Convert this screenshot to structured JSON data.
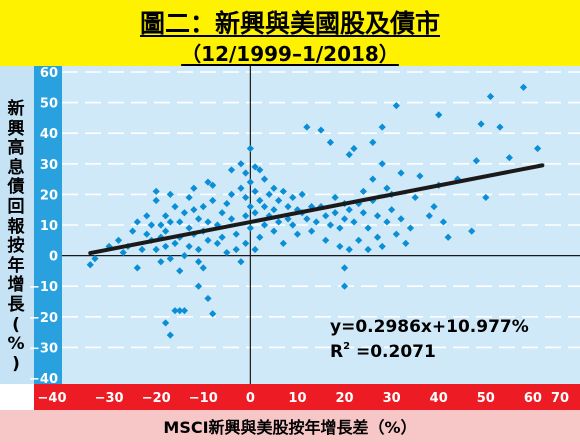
{
  "chart_data": {
    "type": "scatter",
    "title": "圖二：新興與美國股及債市",
    "subtitle": "（12/1999–1/2018）",
    "xlabel": "MSCI新興與美股按年增長差（%）",
    "ylabel": "新興高息債回報按年增長(%)",
    "xlim": [
      -40,
      70
    ],
    "ylim": [
      -40,
      60
    ],
    "x_ticks": [
      "−40",
      "−30",
      "−20",
      "−10",
      "0",
      "10",
      "20",
      "30",
      "40",
      "50",
      "60",
      "70"
    ],
    "y_ticks": [
      "60",
      "50",
      "40",
      "30",
      "20",
      "10",
      "0",
      "−10",
      "−20",
      "−30",
      "−40"
    ],
    "grid": "horizontal-dashed",
    "marker_color": "#0a8fd6",
    "trendline": {
      "slope": 0.2986,
      "intercept": 10.977,
      "x_range": [
        -34,
        62
      ],
      "color": "#1a1a1a"
    },
    "annotations": {
      "equation": "y=0.2986x+10.977%",
      "r_squared_prefix": "R",
      "r_squared_sup": "2",
      "r_squared_value": " =0.2071"
    },
    "points": [
      [
        -34,
        -3
      ],
      [
        -33,
        -1
      ],
      [
        -30,
        3
      ],
      [
        -28,
        5
      ],
      [
        -27,
        1
      ],
      [
        -26,
        3
      ],
      [
        -25,
        8
      ],
      [
        -24,
        11
      ],
      [
        -24,
        -4
      ],
      [
        -23,
        2
      ],
      [
        -22,
        7
      ],
      [
        -22,
        13
      ],
      [
        -21,
        5
      ],
      [
        -21,
        10
      ],
      [
        -20,
        18
      ],
      [
        -20,
        21
      ],
      [
        -20,
        2
      ],
      [
        -19,
        10
      ],
      [
        -19,
        6
      ],
      [
        -19,
        -2
      ],
      [
        -18,
        13
      ],
      [
        -18,
        8
      ],
      [
        -18,
        3
      ],
      [
        -18,
        -22
      ],
      [
        -17,
        20
      ],
      [
        -17,
        11
      ],
      [
        -17,
        -1
      ],
      [
        -17,
        -26
      ],
      [
        -16,
        16
      ],
      [
        -16,
        4
      ],
      [
        -16,
        -18
      ],
      [
        -15,
        11
      ],
      [
        -15,
        6
      ],
      [
        -15,
        -5
      ],
      [
        -15,
        -18
      ],
      [
        -14,
        14
      ],
      [
        -14,
        0
      ],
      [
        -14,
        -18
      ],
      [
        -13,
        19
      ],
      [
        -13,
        9
      ],
      [
        -13,
        3
      ],
      [
        -12,
        22
      ],
      [
        -12,
        15
      ],
      [
        -12,
        7
      ],
      [
        -11,
        12
      ],
      [
        -11,
        2
      ],
      [
        -11,
        -2
      ],
      [
        -11,
        -10
      ],
      [
        -10,
        16
      ],
      [
        -10,
        8
      ],
      [
        -10,
        -4
      ],
      [
        -9,
        24
      ],
      [
        -9,
        11
      ],
      [
        -9,
        5
      ],
      [
        -9,
        -14
      ],
      [
        -8,
        23
      ],
      [
        -8,
        18
      ],
      [
        -8,
        -19
      ],
      [
        -7,
        10
      ],
      [
        -7,
        4
      ],
      [
        -6,
        14
      ],
      [
        -6,
        6
      ],
      [
        -5,
        17
      ],
      [
        -5,
        1
      ],
      [
        -4,
        28
      ],
      [
        -4,
        20
      ],
      [
        -4,
        12
      ],
      [
        -3,
        7
      ],
      [
        -3,
        2
      ],
      [
        -2,
        30
      ],
      [
        -2,
        22
      ],
      [
        -2,
        -2
      ],
      [
        -1,
        27
      ],
      [
        -1,
        19
      ],
      [
        -1,
        13
      ],
      [
        -1,
        4
      ],
      [
        0,
        35
      ],
      [
        0,
        24
      ],
      [
        0,
        16
      ],
      [
        0,
        9
      ],
      [
        1,
        29
      ],
      [
        1,
        21
      ],
      [
        1,
        14
      ],
      [
        1,
        2
      ],
      [
        2,
        28
      ],
      [
        2,
        18
      ],
      [
        2,
        6
      ],
      [
        3,
        25
      ],
      [
        3,
        16
      ],
      [
        3,
        10
      ],
      [
        4,
        20
      ],
      [
        4,
        13
      ],
      [
        5,
        22
      ],
      [
        5,
        15
      ],
      [
        5,
        8
      ],
      [
        6,
        18
      ],
      [
        6,
        11
      ],
      [
        7,
        21
      ],
      [
        7,
        4
      ],
      [
        8,
        16
      ],
      [
        8,
        12
      ],
      [
        9,
        19
      ],
      [
        9,
        10
      ],
      [
        10,
        15
      ],
      [
        10,
        7
      ],
      [
        11,
        14
      ],
      [
        11,
        20
      ],
      [
        12,
        42
      ],
      [
        12,
        12
      ],
      [
        13,
        16
      ],
      [
        13,
        8
      ],
      [
        14,
        11
      ],
      [
        15,
        41
      ],
      [
        15,
        16
      ],
      [
        16,
        13
      ],
      [
        16,
        5
      ],
      [
        17,
        37
      ],
      [
        17,
        10
      ],
      [
        18,
        14
      ],
      [
        18,
        19
      ],
      [
        19,
        9
      ],
      [
        19,
        3
      ],
      [
        20,
        17
      ],
      [
        20,
        12
      ],
      [
        20,
        -10
      ],
      [
        20,
        -4
      ],
      [
        21,
        33
      ],
      [
        21,
        15
      ],
      [
        21,
        2
      ],
      [
        22,
        11
      ],
      [
        22,
        35
      ],
      [
        23,
        17
      ],
      [
        23,
        5
      ],
      [
        24,
        21
      ],
      [
        24,
        14
      ],
      [
        25,
        9
      ],
      [
        25,
        2
      ],
      [
        26,
        25
      ],
      [
        26,
        18
      ],
      [
        26,
        37
      ],
      [
        27,
        13
      ],
      [
        27,
        6
      ],
      [
        28,
        42
      ],
      [
        28,
        30
      ],
      [
        28,
        3
      ],
      [
        29,
        22
      ],
      [
        29,
        11
      ],
      [
        30,
        20
      ],
      [
        30,
        15
      ],
      [
        31,
        49
      ],
      [
        31,
        7
      ],
      [
        32,
        27
      ],
      [
        32,
        12
      ],
      [
        33,
        4
      ],
      [
        34,
        9
      ],
      [
        35,
        19
      ],
      [
        36,
        26
      ],
      [
        38,
        13
      ],
      [
        39,
        16
      ],
      [
        40,
        46
      ],
      [
        40,
        23
      ],
      [
        41,
        11
      ],
      [
        42,
        6
      ],
      [
        44,
        25
      ],
      [
        47,
        8
      ],
      [
        48,
        31
      ],
      [
        49,
        43
      ],
      [
        50,
        19
      ],
      [
        51,
        52
      ],
      [
        53,
        42
      ],
      [
        55,
        32
      ],
      [
        58,
        55
      ],
      [
        61,
        35
      ]
    ]
  }
}
